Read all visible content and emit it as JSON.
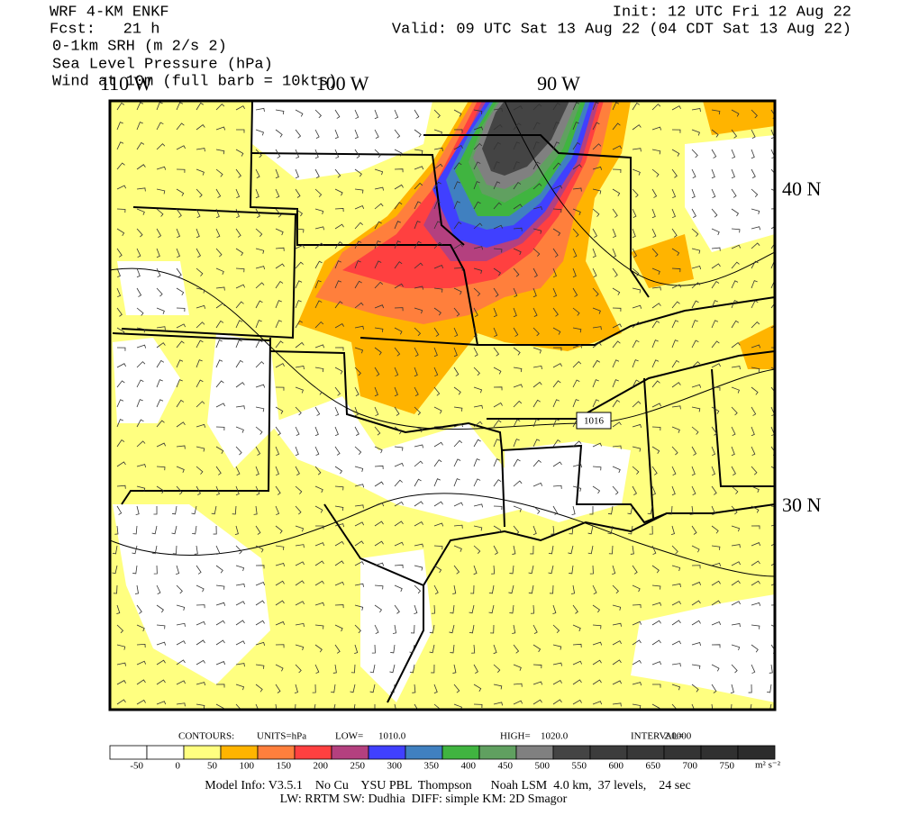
{
  "header": {
    "model": "WRF 4-KM ENKF",
    "forecast": "Fcst:   21 h",
    "fields": [
      "0-1km SRH (m 2/s 2)",
      "Sea Level Pressure (hPa)",
      "Wind at 10m (full barb = 10kts)"
    ],
    "init": "Init: 12 UTC Fri 12 Aug 22",
    "valid": "Valid: 09 UTC Sat 13 Aug 22 (04 CDT Sat 13 Aug 22)"
  },
  "map": {
    "longitudes": [
      "110 W",
      "100 W",
      "90 W"
    ],
    "latitudes": [
      "40 N",
      "30 N"
    ],
    "contour_label": "1016"
  },
  "contours": [
    "CONTOURS:",
    "UNITS=hPa",
    "LOW=",
    "1010.0",
    "HIGH=",
    "1020.0",
    "INTERVAL=",
    "2.0000"
  ],
  "colorbar": {
    "labels": [
      "-50",
      "0",
      "50",
      "100",
      "150",
      "200",
      "250",
      "300",
      "350",
      "400",
      "450",
      "500",
      "550",
      "600",
      "650",
      "700",
      "750"
    ],
    "unit": "m² s⁻²",
    "colors": [
      "#ffffff",
      "#ffffff",
      "#ffff80",
      "#ffb400",
      "#ff7f3c",
      "#ff4040",
      "#b4407f",
      "#4040ff",
      "#4080c0",
      "#40b440",
      "#60a060",
      "#808080",
      "#444444",
      "#3c3c3c",
      "#383838",
      "#343434",
      "#303030",
      "#2c2c2c"
    ]
  },
  "footer": [
    "Model Info: V3.5.1    No Cu    YSU PBL  Thompson      Noah LSM  4.0 km,  37 levels,    24 sec",
    "LW: RRTM SW: Dudhia  DIFF: simple KM: 2D Smagor"
  ]
}
